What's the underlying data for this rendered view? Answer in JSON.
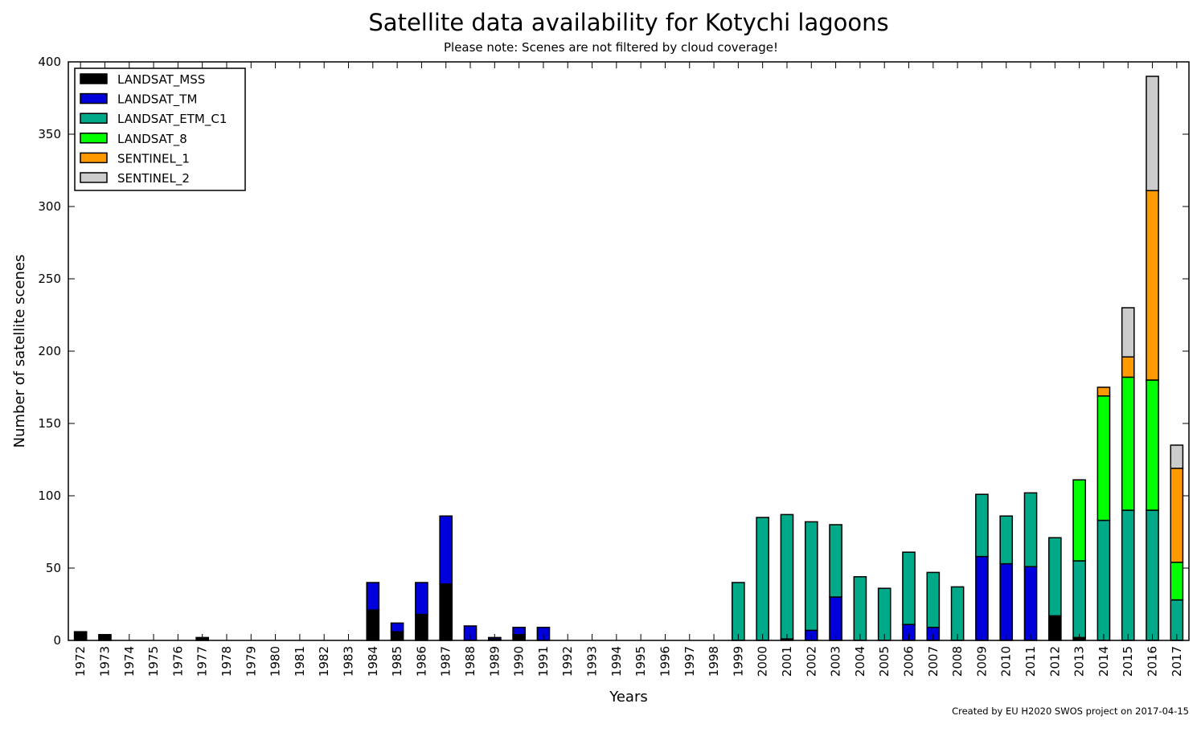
{
  "chart_data": {
    "type": "bar",
    "stacked": true,
    "title": "Satellite data availability for Kotychi lagoons",
    "subtitle": "Please note: Scenes are not filtered by cloud coverage!",
    "xlabel": "Years",
    "ylabel": "Number of satellite scenes",
    "ylim": [
      0,
      400
    ],
    "yticks": [
      0,
      50,
      100,
      150,
      200,
      250,
      300,
      350,
      400
    ],
    "credit": "Created by EU H2020 SWOS project on 2017-04-15",
    "legend_position": "top-left",
    "categories": [
      "1972",
      "1973",
      "1974",
      "1975",
      "1976",
      "1977",
      "1978",
      "1979",
      "1980",
      "1981",
      "1982",
      "1983",
      "1984",
      "1985",
      "1986",
      "1987",
      "1988",
      "1989",
      "1990",
      "1991",
      "1992",
      "1993",
      "1994",
      "1995",
      "1996",
      "1997",
      "1998",
      "1999",
      "2000",
      "2001",
      "2002",
      "2003",
      "2004",
      "2005",
      "2006",
      "2007",
      "2008",
      "2009",
      "2010",
      "2011",
      "2012",
      "2013",
      "2014",
      "2015",
      "2016",
      "2017"
    ],
    "series": [
      {
        "name": "LANDSAT_MSS",
        "color": "#000000",
        "values": [
          6,
          4,
          0,
          0,
          0,
          2,
          0,
          0,
          0,
          0,
          0,
          0,
          21,
          6,
          18,
          39,
          0,
          1,
          4,
          0,
          0,
          0,
          0,
          0,
          0,
          0,
          0,
          0,
          0,
          1,
          0,
          0,
          0,
          0,
          0,
          0,
          0,
          0,
          0,
          0,
          17,
          2,
          0,
          0,
          0,
          0
        ]
      },
      {
        "name": "LANDSAT_TM",
        "color": "#0000dd",
        "values": [
          0,
          0,
          0,
          0,
          0,
          0,
          0,
          0,
          0,
          0,
          0,
          0,
          19,
          6,
          22,
          47,
          10,
          1,
          5,
          9,
          0,
          0,
          0,
          0,
          0,
          0,
          0,
          0,
          0,
          0,
          7,
          30,
          0,
          0,
          11,
          9,
          0,
          58,
          53,
          51,
          0,
          0,
          0,
          0,
          0,
          0
        ]
      },
      {
        "name": "LANDSAT_ETM_C1",
        "color": "#00aa88",
        "values": [
          0,
          0,
          0,
          0,
          0,
          0,
          0,
          0,
          0,
          0,
          0,
          0,
          0,
          0,
          0,
          0,
          0,
          0,
          0,
          0,
          0,
          0,
          0,
          0,
          0,
          0,
          0,
          40,
          85,
          86,
          75,
          50,
          44,
          36,
          50,
          38,
          37,
          43,
          33,
          51,
          54,
          53,
          83,
          90,
          90,
          28
        ]
      },
      {
        "name": "LANDSAT_8",
        "color": "#00ff00",
        "values": [
          0,
          0,
          0,
          0,
          0,
          0,
          0,
          0,
          0,
          0,
          0,
          0,
          0,
          0,
          0,
          0,
          0,
          0,
          0,
          0,
          0,
          0,
          0,
          0,
          0,
          0,
          0,
          0,
          0,
          0,
          0,
          0,
          0,
          0,
          0,
          0,
          0,
          0,
          0,
          0,
          0,
          56,
          86,
          92,
          90,
          26
        ]
      },
      {
        "name": "SENTINEL_1",
        "color": "#ff9900",
        "values": [
          0,
          0,
          0,
          0,
          0,
          0,
          0,
          0,
          0,
          0,
          0,
          0,
          0,
          0,
          0,
          0,
          0,
          0,
          0,
          0,
          0,
          0,
          0,
          0,
          0,
          0,
          0,
          0,
          0,
          0,
          0,
          0,
          0,
          0,
          0,
          0,
          0,
          0,
          0,
          0,
          0,
          0,
          6,
          14,
          131,
          65
        ]
      },
      {
        "name": "SENTINEL_2",
        "color": "#cccccc",
        "values": [
          0,
          0,
          0,
          0,
          0,
          0,
          0,
          0,
          0,
          0,
          0,
          0,
          0,
          0,
          0,
          0,
          0,
          0,
          0,
          0,
          0,
          0,
          0,
          0,
          0,
          0,
          0,
          0,
          0,
          0,
          0,
          0,
          0,
          0,
          0,
          0,
          0,
          0,
          0,
          0,
          0,
          0,
          0,
          34,
          79,
          16
        ]
      }
    ]
  }
}
